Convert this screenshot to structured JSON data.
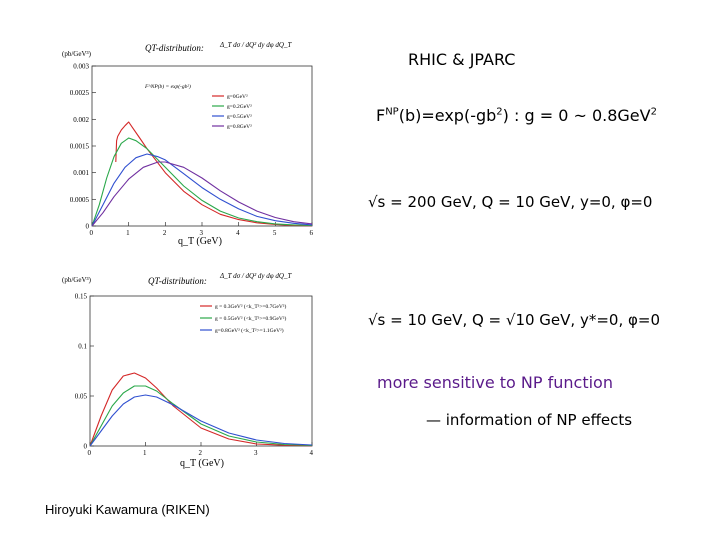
{
  "slide": {
    "title": "RHIC & JPARC",
    "np_func": "exp(-gb",
    "np_func_prefix": "F",
    "np_func_sup": "NP",
    "np_func_arg": "(b)",
    "np_func_sq": "2",
    "np_func_range": ")  : g = 0 ~ 0.8GeV",
    "np_func_range_sq": "2",
    "kinematics_1": "√s = 200 GeV,  Q = 10 GeV,  y=0, φ=0",
    "kinematics_2": "√s = 10 GeV,  Q = √10 GeV,  y*=0, φ=0",
    "sensitivity": "more sensitive to NP function",
    "information": "— information of NP effects",
    "author": "Hiroyuki Kawamura (RIKEN)"
  },
  "chart_data": [
    {
      "type": "line",
      "title": "QT-distribution:",
      "formula": "Δ_T dσ / dQ² dy dφ dQ_T",
      "units": "(pb/GeV³)",
      "xlabel": "q_T (GeV)",
      "xlim": [
        0,
        6
      ],
      "ylim": [
        0,
        0.003
      ],
      "x_ticks": [
        "0",
        "1",
        "2",
        "3",
        "4",
        "5",
        "6"
      ],
      "y_ticks": [
        "0",
        "0.0005",
        "0.001",
        "0.0015",
        "0.002",
        "0.0025",
        "0.003"
      ],
      "legend_header": "F^NP(b) = exp(-gb²)",
      "legend_placement": "top-right",
      "series": [
        {
          "name": "g=0GeV²",
          "color": "#d42828",
          "x": [
            0.65,
            0.67,
            0.7,
            0.8,
            0.9,
            1.0,
            1.1,
            1.3,
            1.5,
            2.0,
            2.5,
            3.0,
            3.5,
            4.0,
            4.5,
            5.0,
            5.5,
            6.0
          ],
          "y": [
            0.0012,
            0.0016,
            0.00168,
            0.0018,
            0.00188,
            0.00195,
            0.00185,
            0.00165,
            0.00145,
            0.001,
            0.00065,
            0.0004,
            0.00022,
            0.00012,
            6e-05,
            3e-05,
            1e-05,
            5e-06
          ]
        },
        {
          "name": "g=0.2GeV²",
          "color": "#2aa84a",
          "x": [
            0,
            0.2,
            0.4,
            0.6,
            0.8,
            1.0,
            1.2,
            1.5,
            2.0,
            2.5,
            3.0,
            3.5,
            4.0,
            4.5,
            5.0,
            5.5,
            6.0
          ],
          "y": [
            0,
            0.0004,
            0.0009,
            0.0013,
            0.00155,
            0.00165,
            0.0016,
            0.00145,
            0.0011,
            0.00075,
            0.00048,
            0.00028,
            0.00015,
            8e-05,
            4e-05,
            2e-05,
            1e-05
          ]
        },
        {
          "name": "g=0.5GeV²",
          "color": "#3050d0",
          "x": [
            0,
            0.3,
            0.6,
            0.9,
            1.2,
            1.5,
            1.8,
            2.0,
            2.5,
            3.0,
            3.5,
            4.0,
            4.5,
            5.0,
            5.5,
            6.0
          ],
          "y": [
            0,
            0.0004,
            0.0008,
            0.0011,
            0.00128,
            0.00135,
            0.0013,
            0.00124,
            0.00098,
            0.00072,
            0.0005,
            0.00032,
            0.00018,
            0.0001,
            5e-05,
            2e-05
          ]
        },
        {
          "name": "g=0.8GeV²",
          "color": "#7030a0",
          "x": [
            0,
            0.3,
            0.6,
            1.0,
            1.4,
            1.8,
            2.0,
            2.5,
            3.0,
            3.5,
            4.0,
            4.5,
            5.0,
            5.5,
            6.0
          ],
          "y": [
            0,
            0.00025,
            0.00055,
            0.00088,
            0.0011,
            0.0012,
            0.0012,
            0.0011,
            0.0009,
            0.00066,
            0.00045,
            0.00028,
            0.00016,
            8e-05,
            4e-05
          ]
        }
      ]
    },
    {
      "type": "line",
      "title": "QT-distribution:",
      "formula": "Δ_T dσ / dQ² dy dφ dQ_T",
      "units": "(pb/GeV³)",
      "xlabel": "q_T (GeV)",
      "xlim": [
        0,
        4
      ],
      "ylim": [
        0,
        0.15
      ],
      "x_ticks": [
        "0",
        "1",
        "2",
        "3",
        "4"
      ],
      "y_ticks": [
        "0",
        "0.05",
        "0.1",
        "0.15"
      ],
      "legend_placement": "top-right",
      "series": [
        {
          "name": "g = 0.3GeV² (<k_T²>=0.7GeV²)",
          "color": "#d42828",
          "x": [
            0,
            0.2,
            0.4,
            0.6,
            0.8,
            1.0,
            1.2,
            1.5,
            2.0,
            2.5,
            3.0,
            3.5,
            4.0
          ],
          "y": [
            0,
            0.03,
            0.056,
            0.07,
            0.073,
            0.068,
            0.058,
            0.04,
            0.018,
            0.007,
            0.002,
            0.0008,
            0.0003
          ]
        },
        {
          "name": "g = 0.5GeV² (<k_T²>=0.9GeV²)",
          "color": "#2aa84a",
          "x": [
            0,
            0.2,
            0.4,
            0.6,
            0.8,
            1.0,
            1.2,
            1.5,
            2.0,
            2.5,
            3.0,
            3.5,
            4.0
          ],
          "y": [
            0,
            0.02,
            0.04,
            0.053,
            0.06,
            0.06,
            0.055,
            0.042,
            0.022,
            0.01,
            0.004,
            0.0015,
            0.0005
          ]
        },
        {
          "name": "g=0.8GeV² (<k_T²>=1.1GeV²)",
          "color": "#3050d0",
          "x": [
            0,
            0.2,
            0.4,
            0.6,
            0.8,
            1.0,
            1.2,
            1.5,
            2.0,
            2.5,
            3.0,
            3.5,
            4.0
          ],
          "y": [
            0,
            0.015,
            0.03,
            0.042,
            0.049,
            0.051,
            0.049,
            0.041,
            0.025,
            0.013,
            0.006,
            0.0025,
            0.001
          ]
        }
      ]
    }
  ]
}
